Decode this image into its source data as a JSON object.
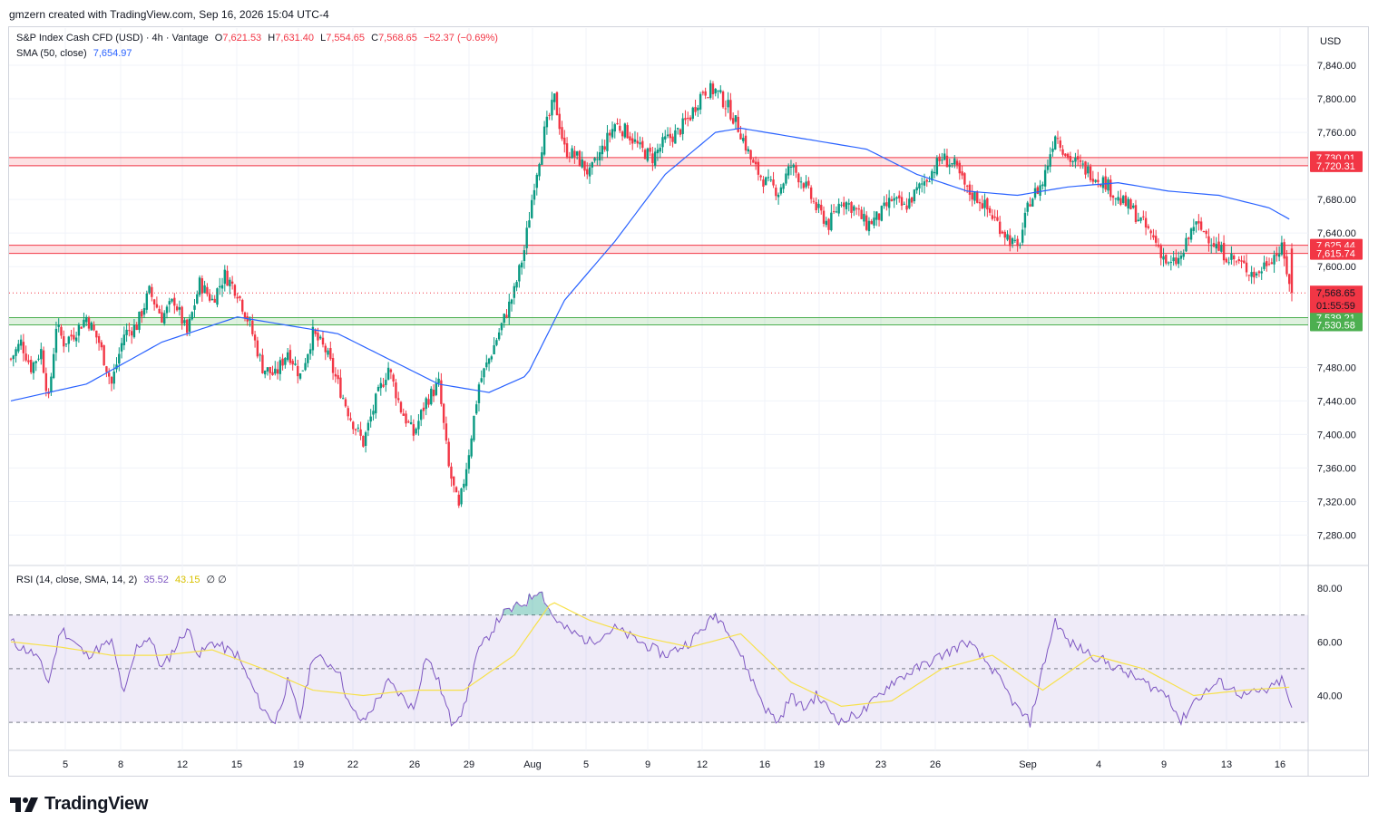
{
  "header": {
    "credit": "gmzern created with TradingView.com, Sep 16, 2026 15:04 UTC-4"
  },
  "legend": {
    "symbol": "S&P Index Cash CFD (USD) · 4h · Vantage",
    "open_label": "O",
    "open": "7,621.53",
    "high_label": "H",
    "high": "7,631.40",
    "low_label": "L",
    "low": "7,554.65",
    "close_label": "C",
    "close": "7,568.65",
    "change": "−52.37 (−0.69%)",
    "sma_label": "SMA (50, close)",
    "sma_value": "7,654.97",
    "rsi_label": "RSI (14, close, SMA, 14, 2)",
    "rsi_value": "35.52",
    "rsi_ma_value": "43.15",
    "rsi_extra": "∅ ∅"
  },
  "footer": {
    "logo_text": "TradingView"
  },
  "colors": {
    "up": "#089981",
    "down": "#f23645",
    "sma": "#2962ff",
    "rsi": "#7e57c2",
    "rsi_ma": "#f7e14b",
    "support": "#4caf50",
    "resistance": "#f23645"
  },
  "chart_data": [
    {
      "type": "candlestick",
      "currency": "USD",
      "ylim": [
        7260,
        7880
      ],
      "y_ticks": [
        "7,280.00",
        "7,320.00",
        "7,360.00",
        "7,400.00",
        "7,440.00",
        "7,480.00",
        "7,600.00",
        "7,640.00",
        "7,680.00",
        "7,720.00",
        "7,760.00",
        "7,800.00",
        "7,840.00"
      ],
      "x_ticks": [
        "5",
        "8",
        "12",
        "15",
        "19",
        "22",
        "26",
        "29",
        "Aug",
        "5",
        "9",
        "12",
        "16",
        "19",
        "23",
        "26",
        "Sep",
        "4",
        "9",
        "13",
        "16"
      ],
      "last_price": {
        "label": "7,568.65",
        "value": 7568.65,
        "countdown": "01:55:59"
      },
      "zones": [
        {
          "kind": "resistance",
          "top_label": "7,730.01",
          "bottom_label": "7,720.31",
          "top": 7730.01,
          "bottom": 7720.31
        },
        {
          "kind": "resistance",
          "top_label": "7,625.44",
          "bottom_label": "7,615.74",
          "top": 7625.44,
          "bottom": 7615.74
        },
        {
          "kind": "support",
          "top_label": "7,539.21",
          "bottom_label": "7,530.58",
          "top": 7539.21,
          "bottom": 7530.58
        }
      ],
      "close_path": [
        [
          0,
          7490
        ],
        [
          4,
          7510
        ],
        [
          8,
          7480
        ],
        [
          12,
          7500
        ],
        [
          15,
          7440
        ],
        [
          18,
          7530
        ],
        [
          21,
          7510
        ],
        [
          25,
          7520
        ],
        [
          30,
          7540
        ],
        [
          35,
          7510
        ],
        [
          40,
          7460
        ],
        [
          45,
          7520
        ],
        [
          50,
          7530
        ],
        [
          55,
          7570
        ],
        [
          60,
          7540
        ],
        [
          65,
          7560
        ],
        [
          70,
          7520
        ],
        [
          75,
          7580
        ],
        [
          80,
          7560
        ],
        [
          85,
          7590
        ],
        [
          90,
          7570
        ],
        [
          95,
          7530
        ],
        [
          100,
          7480
        ],
        [
          105,
          7470
        ],
        [
          110,
          7500
        ],
        [
          115,
          7470
        ],
        [
          120,
          7520
        ],
        [
          125,
          7500
        ],
        [
          130,
          7460
        ],
        [
          135,
          7420
        ],
        [
          140,
          7390
        ],
        [
          145,
          7440
        ],
        [
          150,
          7480
        ],
        [
          155,
          7430
        ],
        [
          160,
          7400
        ],
        [
          165,
          7440
        ],
        [
          170,
          7460
        ],
        [
          174,
          7360
        ],
        [
          178,
          7310
        ],
        [
          182,
          7380
        ],
        [
          186,
          7460
        ],
        [
          190,
          7490
        ],
        [
          195,
          7530
        ],
        [
          200,
          7570
        ],
        [
          204,
          7620
        ],
        [
          208,
          7700
        ],
        [
          212,
          7760
        ],
        [
          216,
          7800
        ],
        [
          220,
          7740
        ],
        [
          225,
          7730
        ],
        [
          230,
          7710
        ],
        [
          235,
          7740
        ],
        [
          240,
          7770
        ],
        [
          245,
          7760
        ],
        [
          250,
          7740
        ],
        [
          255,
          7730
        ],
        [
          260,
          7750
        ],
        [
          265,
          7760
        ],
        [
          270,
          7780
        ],
        [
          275,
          7810
        ],
        [
          280,
          7810
        ],
        [
          285,
          7790
        ],
        [
          290,
          7760
        ],
        [
          295,
          7720
        ],
        [
          300,
          7700
        ],
        [
          305,
          7690
        ],
        [
          310,
          7720
        ],
        [
          315,
          7700
        ],
        [
          320,
          7670
        ],
        [
          325,
          7650
        ],
        [
          330,
          7680
        ],
        [
          335,
          7670
        ],
        [
          340,
          7650
        ],
        [
          345,
          7660
        ],
        [
          350,
          7680
        ],
        [
          355,
          7670
        ],
        [
          360,
          7690
        ],
        [
          365,
          7710
        ],
        [
          370,
          7730
        ],
        [
          375,
          7720
        ],
        [
          380,
          7690
        ],
        [
          385,
          7680
        ],
        [
          390,
          7660
        ],
        [
          395,
          7640
        ],
        [
          400,
          7620
        ],
        [
          405,
          7680
        ],
        [
          410,
          7700
        ],
        [
          415,
          7760
        ],
        [
          420,
          7730
        ],
        [
          425,
          7720
        ],
        [
          430,
          7710
        ],
        [
          435,
          7700
        ],
        [
          440,
          7680
        ],
        [
          445,
          7670
        ],
        [
          450,
          7650
        ],
        [
          455,
          7630
        ],
        [
          460,
          7600
        ],
        [
          465,
          7610
        ],
        [
          470,
          7650
        ],
        [
          475,
          7640
        ],
        [
          480,
          7620
        ],
        [
          485,
          7610
        ],
        [
          490,
          7600
        ],
        [
          495,
          7590
        ],
        [
          500,
          7610
        ],
        [
          505,
          7620
        ],
        [
          509,
          7570
        ]
      ],
      "sma_path": [
        [
          0,
          7440
        ],
        [
          30,
          7460
        ],
        [
          60,
          7510
        ],
        [
          90,
          7540
        ],
        [
          110,
          7530
        ],
        [
          130,
          7520
        ],
        [
          150,
          7490
        ],
        [
          170,
          7460
        ],
        [
          190,
          7450
        ],
        [
          205,
          7470
        ],
        [
          220,
          7560
        ],
        [
          240,
          7630
        ],
        [
          260,
          7710
        ],
        [
          280,
          7760
        ],
        [
          290,
          7765
        ],
        [
          310,
          7755
        ],
        [
          340,
          7740
        ],
        [
          360,
          7710
        ],
        [
          380,
          7690
        ],
        [
          400,
          7685
        ],
        [
          420,
          7695
        ],
        [
          440,
          7700
        ],
        [
          460,
          7690
        ],
        [
          480,
          7685
        ],
        [
          500,
          7670
        ],
        [
          509,
          7654.97
        ]
      ]
    },
    {
      "type": "line",
      "indicator": "RSI",
      "ylim": [
        20,
        85
      ],
      "y_ticks": [
        "40.00",
        "60.00",
        "80.00"
      ],
      "levels": [
        30,
        50,
        70
      ],
      "rsi_path": [
        [
          0,
          60
        ],
        [
          10,
          55
        ],
        [
          15,
          45
        ],
        [
          20,
          65
        ],
        [
          30,
          55
        ],
        [
          40,
          60
        ],
        [
          45,
          40
        ],
        [
          50,
          58
        ],
        [
          55,
          62
        ],
        [
          60,
          50
        ],
        [
          70,
          65
        ],
        [
          75,
          55
        ],
        [
          80,
          60
        ],
        [
          90,
          55
        ],
        [
          100,
          35
        ],
        [
          105,
          30
        ],
        [
          110,
          45
        ],
        [
          115,
          32
        ],
        [
          120,
          55
        ],
        [
          130,
          50
        ],
        [
          135,
          35
        ],
        [
          140,
          30
        ],
        [
          150,
          45
        ],
        [
          160,
          35
        ],
        [
          165,
          55
        ],
        [
          170,
          45
        ],
        [
          175,
          30
        ],
        [
          180,
          35
        ],
        [
          185,
          55
        ],
        [
          195,
          70
        ],
        [
          205,
          75
        ],
        [
          210,
          80
        ],
        [
          215,
          70
        ],
        [
          220,
          65
        ],
        [
          230,
          60
        ],
        [
          240,
          65
        ],
        [
          250,
          60
        ],
        [
          260,
          55
        ],
        [
          270,
          60
        ],
        [
          280,
          70
        ],
        [
          285,
          65
        ],
        [
          290,
          55
        ],
        [
          295,
          45
        ],
        [
          300,
          35
        ],
        [
          305,
          30
        ],
        [
          310,
          40
        ],
        [
          315,
          35
        ],
        [
          320,
          40
        ],
        [
          330,
          30
        ],
        [
          340,
          35
        ],
        [
          350,
          45
        ],
        [
          360,
          50
        ],
        [
          370,
          55
        ],
        [
          380,
          60
        ],
        [
          390,
          50
        ],
        [
          400,
          35
        ],
        [
          405,
          30
        ],
        [
          410,
          50
        ],
        [
          415,
          68
        ],
        [
          420,
          60
        ],
        [
          430,
          55
        ],
        [
          440,
          50
        ],
        [
          450,
          45
        ],
        [
          460,
          40
        ],
        [
          465,
          30
        ],
        [
          470,
          38
        ],
        [
          480,
          45
        ],
        [
          490,
          40
        ],
        [
          500,
          42
        ],
        [
          505,
          46
        ],
        [
          509,
          35.52
        ]
      ],
      "rsi_ma_path": [
        [
          0,
          60
        ],
        [
          20,
          58
        ],
        [
          40,
          55
        ],
        [
          60,
          55
        ],
        [
          80,
          57
        ],
        [
          100,
          50
        ],
        [
          120,
          42
        ],
        [
          140,
          40
        ],
        [
          160,
          42
        ],
        [
          180,
          42
        ],
        [
          200,
          55
        ],
        [
          215,
          75
        ],
        [
          230,
          68
        ],
        [
          250,
          62
        ],
        [
          270,
          58
        ],
        [
          290,
          63
        ],
        [
          310,
          45
        ],
        [
          330,
          36
        ],
        [
          350,
          38
        ],
        [
          370,
          50
        ],
        [
          390,
          55
        ],
        [
          410,
          42
        ],
        [
          430,
          55
        ],
        [
          450,
          50
        ],
        [
          470,
          40
        ],
        [
          490,
          42
        ],
        [
          509,
          43.15
        ]
      ]
    }
  ]
}
